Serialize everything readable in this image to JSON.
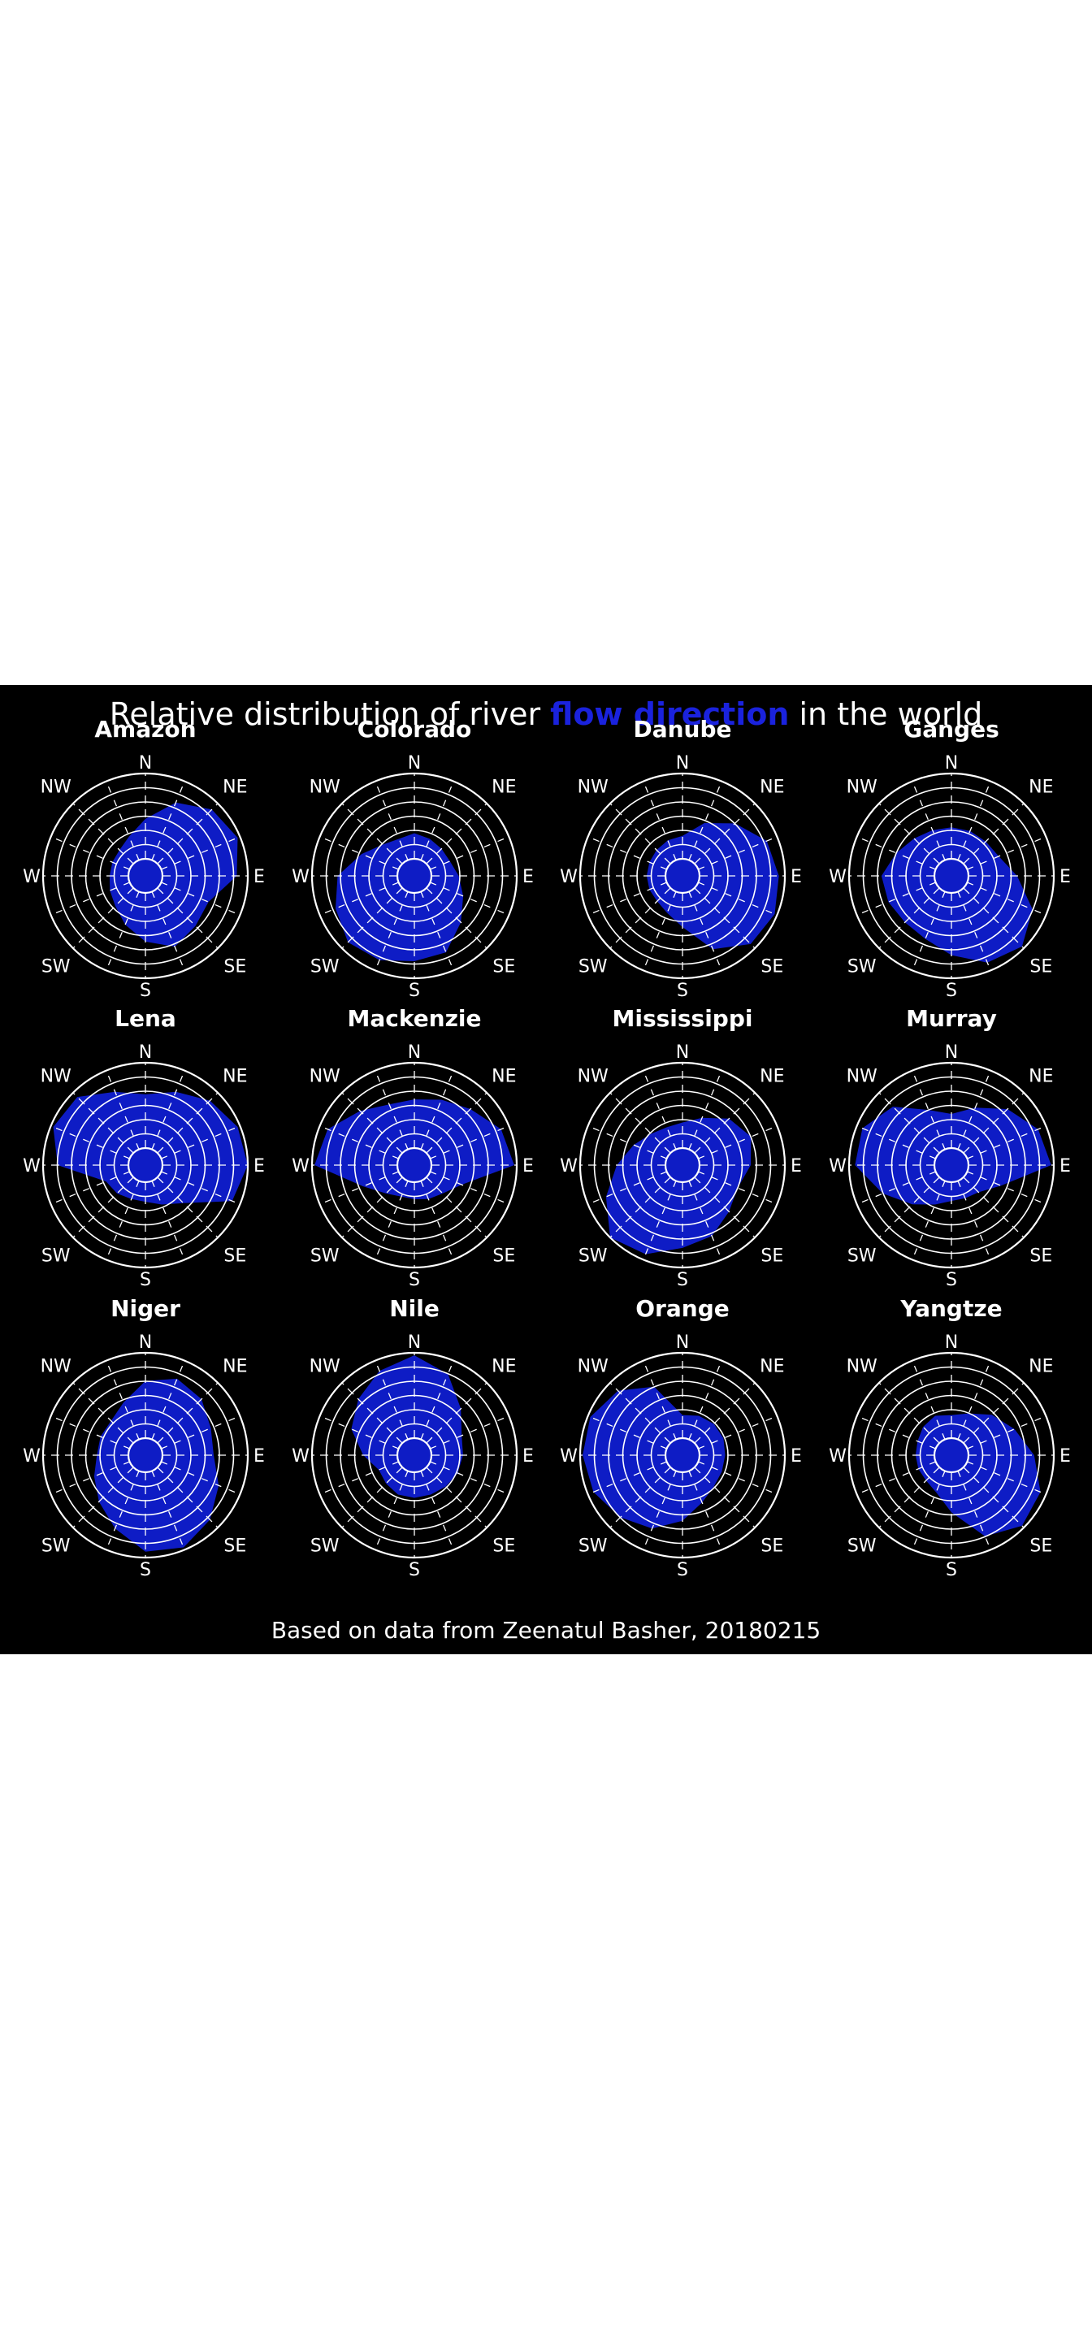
{
  "title": {
    "before": "Relative distribution of river ",
    "highlight": "flow direction",
    "after": " in the world"
  },
  "footer": "Based on data from Zeenatul Basher, 20180215",
  "colors": {
    "background": "#000000",
    "foreground": "#ffffff",
    "accent": "#1a22dd",
    "fill": "#1020e0"
  },
  "chart_data": {
    "type": "radar",
    "direction_labels": [
      "N",
      "NE",
      "E",
      "SE",
      "S",
      "SW",
      "W",
      "NW"
    ],
    "sectors": 16,
    "rlim": [
      0,
      1
    ],
    "grid": true,
    "series": [
      {
        "name": "Amazon",
        "values": [
          0.47,
          0.73,
          0.9,
          0.97,
          0.87,
          0.6,
          0.63,
          0.7,
          0.57,
          0.42,
          0.3,
          0.25,
          0.22,
          0.22,
          0.23,
          0.3
        ]
      },
      {
        "name": "Colorado",
        "values": [
          0.3,
          0.27,
          0.25,
          0.25,
          0.32,
          0.42,
          0.57,
          0.77,
          0.8,
          0.87,
          0.9,
          0.8,
          0.7,
          0.47,
          0.32,
          0.27
        ]
      },
      {
        "name": "Danube",
        "values": [
          0.27,
          0.47,
          0.67,
          0.87,
          0.93,
          0.97,
          0.93,
          0.73,
          0.4,
          0.27,
          0.22,
          0.22,
          0.22,
          0.22,
          0.23,
          0.25
        ]
      },
      {
        "name": "Ganges",
        "values": [
          0.37,
          0.37,
          0.37,
          0.4,
          0.57,
          0.83,
          0.97,
          0.9,
          0.73,
          0.6,
          0.57,
          0.6,
          0.62,
          0.5,
          0.42,
          0.38
        ]
      },
      {
        "name": "Lena",
        "values": [
          0.63,
          0.73,
          0.87,
          0.97,
          1.0,
          0.9,
          0.43,
          0.3,
          0.23,
          0.23,
          0.27,
          0.3,
          0.83,
          0.97,
          0.93,
          0.73
        ]
      },
      {
        "name": "Mackenzie",
        "values": [
          0.57,
          0.63,
          0.73,
          0.9,
          0.97,
          0.4,
          0.27,
          0.23,
          0.2,
          0.2,
          0.27,
          0.45,
          0.97,
          0.9,
          0.7,
          0.57
        ]
      },
      {
        "name": "Mississippi",
        "values": [
          0.3,
          0.4,
          0.57,
          0.67,
          0.6,
          0.5,
          0.57,
          0.7,
          0.77,
          0.93,
          1.0,
          0.77,
          0.57,
          0.42,
          0.32,
          0.28
        ]
      },
      {
        "name": "Murray",
        "values": [
          0.4,
          0.53,
          0.73,
          0.9,
          0.97,
          0.43,
          0.25,
          0.22,
          0.22,
          0.3,
          0.45,
          0.67,
          0.93,
          0.93,
          0.77,
          0.5
        ]
      },
      {
        "name": "Niger",
        "values": [
          0.67,
          0.77,
          0.73,
          0.63,
          0.6,
          0.73,
          0.87,
          0.97,
          0.93,
          0.73,
          0.57,
          0.45,
          0.37,
          0.37,
          0.37,
          0.47
        ]
      },
      {
        "name": "Nile",
        "values": [
          0.97,
          0.83,
          0.57,
          0.4,
          0.37,
          0.35,
          0.32,
          0.3,
          0.3,
          0.3,
          0.27,
          0.25,
          0.4,
          0.6,
          0.73,
          0.87
        ]
      },
      {
        "name": "Orange",
        "values": [
          0.27,
          0.3,
          0.32,
          0.32,
          0.3,
          0.3,
          0.32,
          0.4,
          0.57,
          0.73,
          0.83,
          0.93,
          0.97,
          0.97,
          0.87,
          0.67
        ]
      },
      {
        "name": "Yangtze",
        "values": [
          0.27,
          0.33,
          0.47,
          0.6,
          0.77,
          0.93,
          0.97,
          0.83,
          0.47,
          0.27,
          0.22,
          0.22,
          0.22,
          0.23,
          0.27,
          0.3
        ]
      }
    ]
  }
}
